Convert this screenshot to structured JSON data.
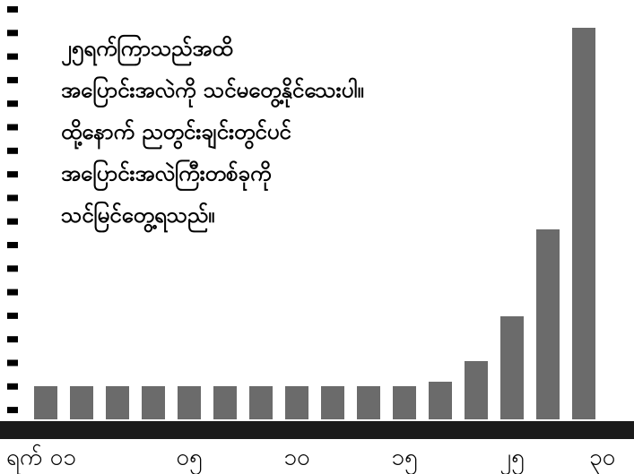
{
  "chart_data": {
    "type": "bar",
    "annotation": [
      "၂၅ရက်ကြာသည်အထိ",
      "အပြောင်းအလဲကို သင်မတွေ့နိုင်သေးပါ။",
      "ထို့နောက် ညတွင်းချင်းတွင်ပင်",
      "အပြောင်းအလဲကြီးတစ်ခုကို",
      "သင်မြင်တွေ့ရသည်။"
    ],
    "categories": [
      "ရက် ၀၁",
      null,
      null,
      null,
      "၀၅",
      null,
      null,
      "၁၀",
      null,
      null,
      "၁၅",
      null,
      null,
      "၂၅",
      null,
      "၃၀"
    ],
    "values": [
      37,
      37,
      37,
      37,
      37,
      37,
      37,
      37,
      37,
      37,
      37,
      42,
      65,
      115,
      212,
      437
    ],
    "color": "#6b6b6b",
    "ylim": [
      0,
      460
    ]
  }
}
